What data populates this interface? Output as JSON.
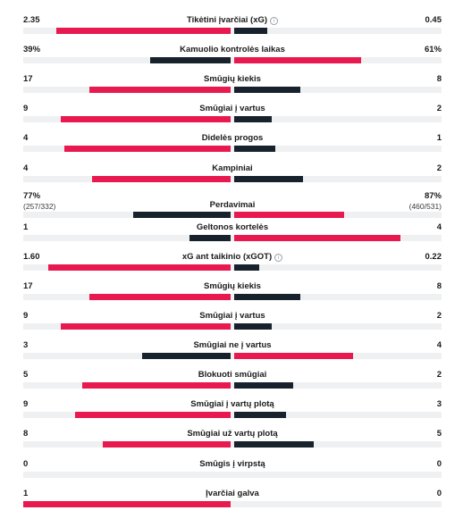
{
  "colors": {
    "home": "#e8194f",
    "away": "#17222d",
    "track": "#eef0f2"
  },
  "stats": [
    {
      "label": "Tikėtini įvarčiai (xG)",
      "home": "2.35",
      "away": "0.45",
      "hv": 2.35,
      "av": 0.45,
      "info": "i",
      "info_icon": "info-icon"
    },
    {
      "label": "Kamuolio kontrolės laikas",
      "home": "39%",
      "away": "61%",
      "hv": 39,
      "av": 61
    },
    {
      "label": "Smūgių kiekis",
      "home": "17",
      "away": "8",
      "hv": 17,
      "av": 8
    },
    {
      "label": "Smūgiai į vartus",
      "home": "9",
      "away": "2",
      "hv": 9,
      "av": 2
    },
    {
      "label": "Didelės progos",
      "home": "4",
      "away": "1",
      "hv": 4,
      "av": 1
    },
    {
      "label": "Kampiniai",
      "home": "4",
      "away": "2",
      "hv": 4,
      "av": 2
    },
    {
      "label": "Perdavimai",
      "home": "77%",
      "away": "87%",
      "home_sub": "(257/332)",
      "away_sub": "(460/531)",
      "hv": 77,
      "av": 87
    },
    {
      "label": "Geltonos kortelės",
      "home": "1",
      "away": "4",
      "hv": 1,
      "av": 4
    },
    {
      "label": "xG ant taikinio (xGOT)",
      "home": "1.60",
      "away": "0.22",
      "hv": 1.6,
      "av": 0.22,
      "info": "i",
      "info_icon": "info-icon"
    },
    {
      "label": "Smūgių kiekis",
      "home": "17",
      "away": "8",
      "hv": 17,
      "av": 8
    },
    {
      "label": "Smūgiai į vartus",
      "home": "9",
      "away": "2",
      "hv": 9,
      "av": 2
    },
    {
      "label": "Smūgiai ne į vartus",
      "home": "3",
      "away": "4",
      "hv": 3,
      "av": 4
    },
    {
      "label": "Blokuoti smūgiai",
      "home": "5",
      "away": "2",
      "hv": 5,
      "av": 2
    },
    {
      "label": "Smūgiai į vartų plotą",
      "home": "9",
      "away": "3",
      "hv": 9,
      "av": 3
    },
    {
      "label": "Smūgiai už vartų plotą",
      "home": "8",
      "away": "5",
      "hv": 8,
      "av": 5
    },
    {
      "label": "Smūgis į virpstą",
      "home": "0",
      "away": "0",
      "hv": 0,
      "av": 0
    },
    {
      "label": "Įvarčiai galva",
      "home": "1",
      "away": "0",
      "hv": 1,
      "av": 0
    }
  ]
}
